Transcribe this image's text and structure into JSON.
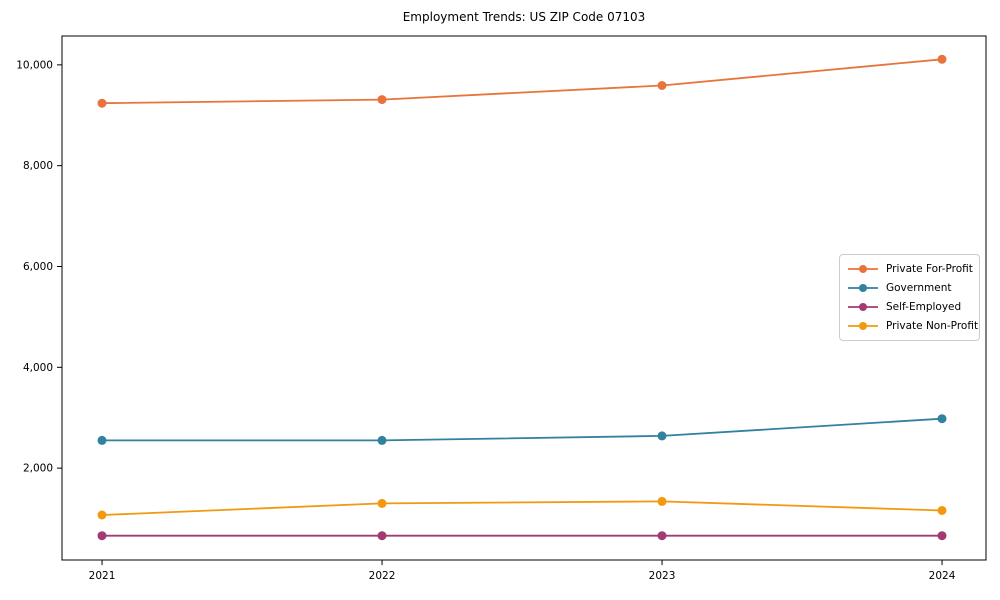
{
  "title": "Employment Trends: US ZIP Code 07103",
  "colors": {
    "private_for_profit": "#E8743B",
    "government": "#31819F",
    "self_employed": "#A23B72",
    "private_non_profit": "#F29910",
    "axis": "#000000",
    "legend_border": "#cccccc",
    "background": "#ffffff"
  },
  "chart_data": {
    "type": "line",
    "title": "Employment Trends: US ZIP Code 07103",
    "categories": [
      2021,
      2022,
      2023,
      2024
    ],
    "series": [
      {
        "name": "Private For-Profit",
        "color": "#E8743B",
        "values": [
          9240,
          9310,
          9590,
          10110
        ]
      },
      {
        "name": "Government",
        "color": "#31819F",
        "values": [
          2550,
          2550,
          2640,
          2980
        ]
      },
      {
        "name": "Self-Employed",
        "color": "#A23B72",
        "values": [
          660,
          660,
          660,
          660
        ]
      },
      {
        "name": "Private Non-Profit",
        "color": "#F29910",
        "values": [
          1070,
          1300,
          1340,
          1160
        ]
      }
    ],
    "xlabel": "",
    "ylabel": "",
    "xlim": [
      2020.857,
      2024.157
    ],
    "ylim": [
      177.5,
      10572.5
    ],
    "xticks": [
      {
        "value": 2021,
        "label": "2021"
      },
      {
        "value": 2022,
        "label": "2022"
      },
      {
        "value": 2023,
        "label": "2023"
      },
      {
        "value": 2024,
        "label": "2024"
      }
    ],
    "yticks": [
      {
        "value": 2000,
        "label": "2,000"
      },
      {
        "value": 4000,
        "label": "4,000"
      },
      {
        "value": 6000,
        "label": "6,000"
      },
      {
        "value": 8000,
        "label": "8,000"
      },
      {
        "value": 10000,
        "label": "10,000"
      }
    ],
    "grid": false,
    "legend_position": "center-right",
    "marker": "circle"
  }
}
